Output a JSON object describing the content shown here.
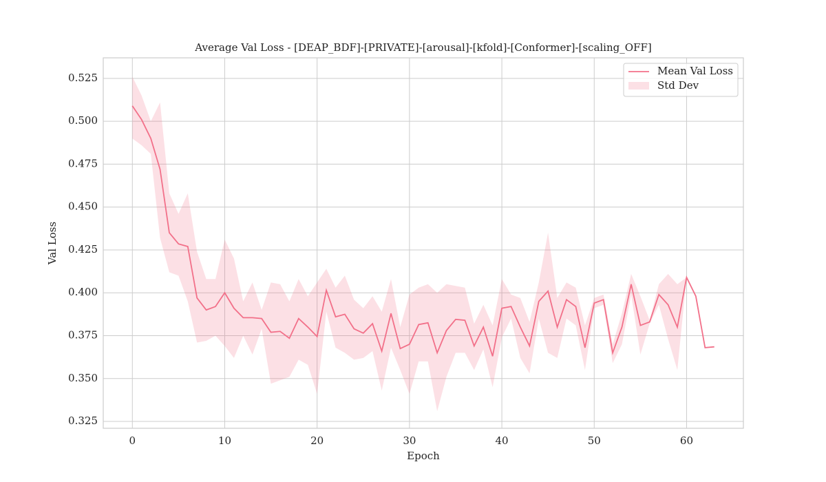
{
  "chart_data": {
    "type": "line",
    "title": "Average Val Loss - [DEAP_BDF]-[PRIVATE]-[arousal]-[kfold]-[Conformer]-[scaling_OFF]",
    "x_label": "Epoch",
    "y_label": "Val Loss",
    "x": [
      0,
      1,
      2,
      3,
      4,
      5,
      6,
      7,
      8,
      9,
      10,
      11,
      12,
      13,
      14,
      15,
      16,
      17,
      18,
      19,
      20,
      21,
      22,
      23,
      24,
      25,
      26,
      27,
      28,
      29,
      30,
      31,
      32,
      33,
      34,
      35,
      36,
      37,
      38,
      39,
      40,
      41,
      42,
      43,
      44,
      45,
      46,
      47,
      48,
      49,
      50,
      51,
      52,
      53,
      54,
      55,
      56,
      57,
      58,
      59,
      60,
      61,
      62,
      63
    ],
    "series": [
      {
        "name": "Mean Val Loss",
        "color": "#f27089",
        "values": [
          0.509,
          0.501,
          0.49,
          0.472,
          0.435,
          0.4285,
          0.427,
          0.397,
          0.39,
          0.392,
          0.4,
          0.391,
          0.3855,
          0.3855,
          0.385,
          0.377,
          0.3775,
          0.3735,
          0.385,
          0.38,
          0.3745,
          0.4015,
          0.386,
          0.3875,
          0.379,
          0.3765,
          0.382,
          0.366,
          0.388,
          0.3675,
          0.37,
          0.3815,
          0.3825,
          0.365,
          0.378,
          0.3845,
          0.384,
          0.369,
          0.38,
          0.363,
          0.391,
          0.392,
          0.38,
          0.369,
          0.395,
          0.401,
          0.38,
          0.396,
          0.392,
          0.368,
          0.394,
          0.396,
          0.365,
          0.38,
          0.405,
          0.381,
          0.383,
          0.399,
          0.393,
          0.38,
          0.409,
          0.398,
          0.368,
          0.3685
        ]
      }
    ],
    "band": {
      "name": "Std Dev",
      "color": "#f27089",
      "upper": [
        0.526,
        0.515,
        0.5,
        0.511,
        0.458,
        0.446,
        0.458,
        0.424,
        0.408,
        0.408,
        0.431,
        0.42,
        0.395,
        0.406,
        0.39,
        0.406,
        0.405,
        0.395,
        0.408,
        0.398,
        0.406,
        0.414,
        0.403,
        0.41,
        0.396,
        0.391,
        0.398,
        0.389,
        0.408,
        0.38,
        0.399,
        0.403,
        0.405,
        0.4,
        0.405,
        0.404,
        0.403,
        0.382,
        0.393,
        0.381,
        0.408,
        0.399,
        0.397,
        0.383,
        0.406,
        0.435,
        0.397,
        0.406,
        0.403,
        0.381,
        0.397,
        0.399,
        0.37,
        0.388,
        0.411,
        0.398,
        0.384,
        0.405,
        0.411,
        0.405,
        0.409,
        null,
        null,
        null
      ],
      "lower": [
        0.49,
        0.486,
        0.481,
        0.432,
        0.412,
        0.41,
        0.395,
        0.371,
        0.372,
        0.375,
        0.369,
        0.362,
        0.375,
        0.364,
        0.379,
        0.347,
        0.349,
        0.351,
        0.361,
        0.358,
        0.341,
        0.389,
        0.368,
        0.365,
        0.361,
        0.362,
        0.366,
        0.343,
        0.368,
        0.355,
        0.341,
        0.36,
        0.36,
        0.331,
        0.351,
        0.365,
        0.365,
        0.355,
        0.367,
        0.345,
        0.374,
        0.385,
        0.362,
        0.353,
        0.385,
        0.365,
        0.362,
        0.385,
        0.381,
        0.355,
        0.391,
        0.393,
        0.359,
        0.37,
        0.399,
        0.364,
        0.382,
        0.393,
        0.373,
        0.355,
        0.409,
        null,
        null,
        null
      ]
    },
    "xlim": [
      -3.15,
      66.15
    ],
    "ylim": [
      0.321,
      0.537
    ],
    "xticks": [
      0,
      10,
      20,
      30,
      40,
      50,
      60
    ],
    "yticks": [
      0.325,
      {
        "value": 0.35,
        "label": "0.350"
      },
      0.375,
      {
        "value": 0.4,
        "label": "0.400"
      },
      0.425,
      {
        "value": 0.45,
        "label": "0.450"
      },
      0.475,
      {
        "value": 0.5,
        "label": "0.500"
      },
      0.525
    ],
    "grid": true,
    "legend": "upper right"
  }
}
